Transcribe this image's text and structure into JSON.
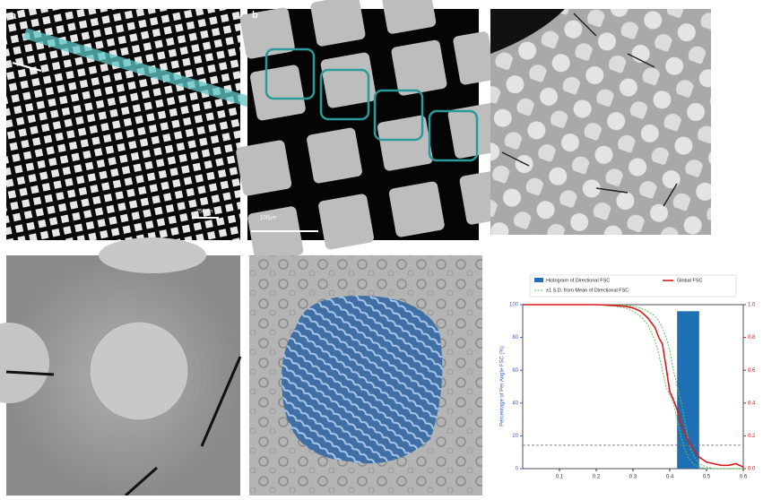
{
  "panels": {
    "a": {
      "label": "a",
      "scale": "250µm"
    },
    "b": {
      "label": "b",
      "scale": "100µm"
    }
  },
  "chart_data": {
    "type": "line",
    "ylabel": "Percentage of Per Angle FSC (%)",
    "xlim": [
      0,
      0.6
    ],
    "xticks": [
      0.1,
      0.2,
      0.3,
      0.4,
      0.5,
      0.6
    ],
    "ylim": [
      0,
      100
    ],
    "yticks": [
      0,
      20,
      40,
      60,
      80,
      100
    ],
    "y2lim": [
      0,
      1
    ],
    "y2ticks": [
      {
        "value": 0,
        "label": "0.0"
      },
      0.2,
      0.4,
      0.6,
      0.8,
      {
        "value": 1,
        "label": "1.0"
      }
    ],
    "threshold": 0.143,
    "histogram": {
      "name": "Histogram of Directional FSC",
      "color": "#1f6fb4",
      "bins": [
        0.42,
        0.48
      ],
      "counts": [
        96
      ]
    },
    "x": [
      0,
      0.05,
      0.1,
      0.15,
      0.2,
      0.25,
      0.28,
      0.3,
      0.32,
      0.34,
      0.36,
      0.37,
      0.38,
      0.39,
      0.4,
      0.41,
      0.42,
      0.43,
      0.44,
      0.45,
      0.46,
      0.47,
      0.48,
      0.5,
      0.52,
      0.54,
      0.56,
      0.58,
      0.6
    ],
    "series": [
      {
        "name": "Global FSC",
        "color": "#d7191c",
        "axis": "y2",
        "values": [
          1,
          1,
          1,
          1,
          1,
          0.995,
          0.99,
          0.98,
          0.96,
          0.92,
          0.86,
          0.8,
          0.76,
          0.62,
          0.47,
          0.42,
          0.36,
          0.28,
          0.22,
          0.17,
          0.13,
          0.1,
          0.07,
          0.04,
          0.03,
          0.02,
          0.02,
          0.03,
          0.01
        ]
      },
      {
        "name": "±1 S.D. from Mean of Directional FSC",
        "color": "#5fbf5f",
        "axis": "y2",
        "values": [
          1,
          1,
          1,
          1,
          1,
          1,
          0.998,
          0.99,
          0.98,
          0.96,
          0.93,
          0.9,
          0.86,
          0.8,
          0.72,
          0.6,
          0.5,
          0.42,
          0.3,
          0.18,
          0.1,
          0.06,
          0.03,
          0.01,
          0,
          0,
          0,
          0,
          0
        ],
        "lower": [
          1,
          1,
          1,
          1,
          1,
          0.99,
          0.98,
          0.96,
          0.93,
          0.88,
          0.78,
          0.7,
          0.6,
          0.5,
          0.45,
          0.4,
          0.3,
          0.2,
          0.12,
          0.07,
          0.04,
          0.02,
          0.01,
          0,
          0,
          0,
          0,
          0,
          0
        ]
      }
    ]
  }
}
